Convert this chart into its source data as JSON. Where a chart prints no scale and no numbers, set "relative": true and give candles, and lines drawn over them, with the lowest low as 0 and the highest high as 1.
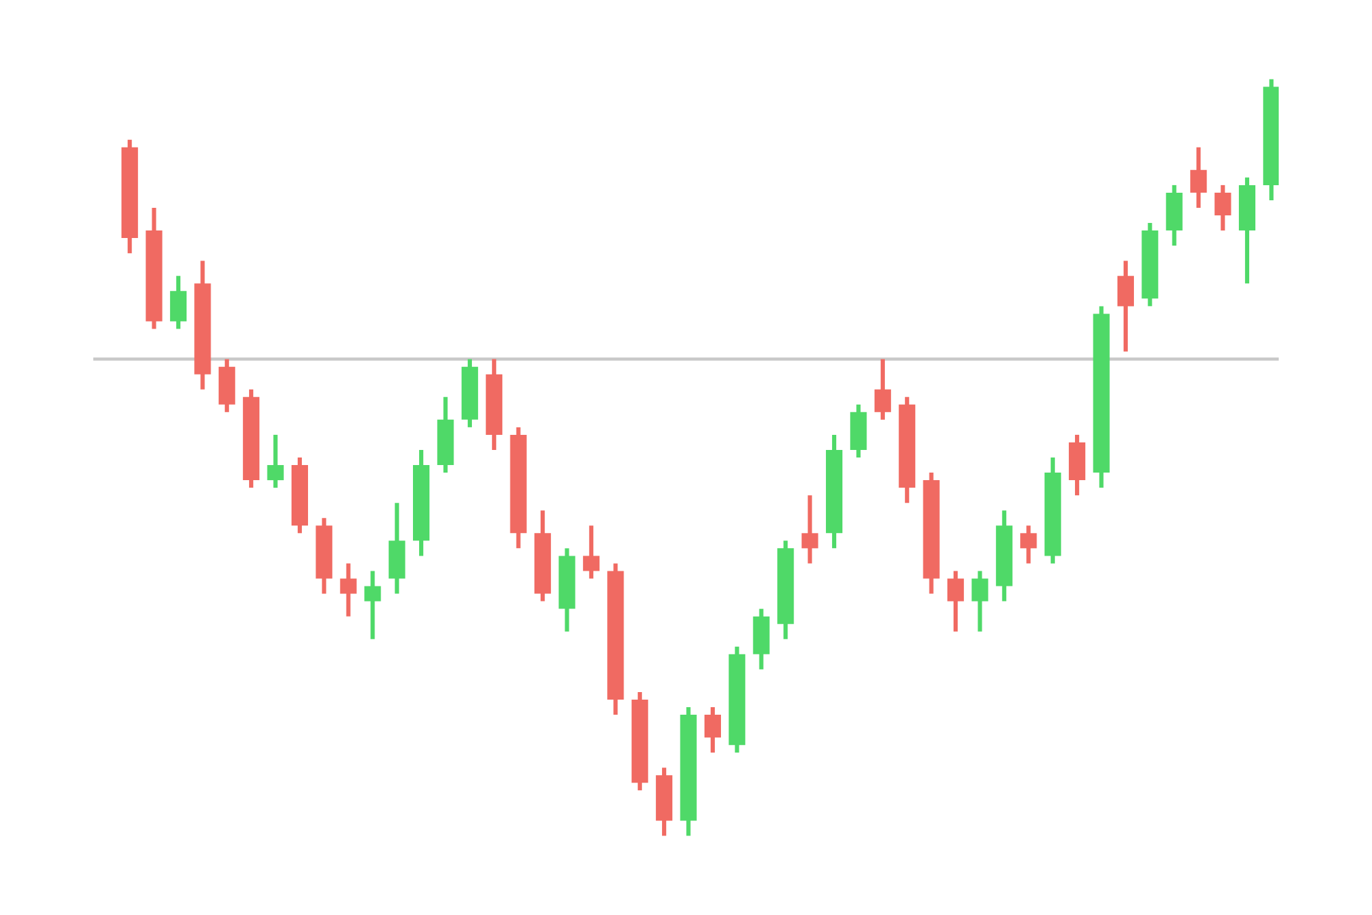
{
  "chart_data": {
    "type": "candlestick",
    "relative": true,
    "categories": [
      null,
      null,
      null,
      null,
      null,
      null,
      null,
      null,
      null,
      null,
      null,
      null,
      null,
      null,
      null,
      null,
      null,
      null,
      null,
      null,
      null,
      null,
      null,
      null,
      null,
      null,
      null,
      null,
      null,
      null,
      null,
      null,
      null,
      null,
      null,
      null,
      null,
      null,
      null,
      null,
      null,
      null,
      null,
      null,
      null,
      null,
      null,
      null
    ],
    "ohlc": [
      [
        0.91,
        0.92,
        0.77,
        0.79
      ],
      [
        0.8,
        0.83,
        0.67,
        0.68
      ],
      [
        0.68,
        0.74,
        0.67,
        0.72
      ],
      [
        0.73,
        0.76,
        0.59,
        0.61
      ],
      [
        0.62,
        0.63,
        0.56,
        0.57
      ],
      [
        0.58,
        0.59,
        0.46,
        0.47
      ],
      [
        0.47,
        0.53,
        0.46,
        0.49
      ],
      [
        0.49,
        0.5,
        0.4,
        0.41
      ],
      [
        0.41,
        0.42,
        0.32,
        0.34
      ],
      [
        0.34,
        0.36,
        0.29,
        0.32
      ],
      [
        0.31,
        0.35,
        0.26,
        0.33
      ],
      [
        0.34,
        0.44,
        0.32,
        0.39
      ],
      [
        0.39,
        0.51,
        0.37,
        0.49
      ],
      [
        0.49,
        0.58,
        0.48,
        0.55
      ],
      [
        0.55,
        0.63,
        0.54,
        0.62
      ],
      [
        0.61,
        0.63,
        0.51,
        0.53
      ],
      [
        0.53,
        0.54,
        0.38,
        0.4
      ],
      [
        0.4,
        0.43,
        0.31,
        0.32
      ],
      [
        0.3,
        0.38,
        0.27,
        0.37
      ],
      [
        0.37,
        0.41,
        0.34,
        0.35
      ],
      [
        0.35,
        0.36,
        0.16,
        0.18
      ],
      [
        0.18,
        0.19,
        0.06,
        0.07
      ],
      [
        0.08,
        0.09,
        0,
        0.02
      ],
      [
        0.02,
        0.17,
        0,
        0.16
      ],
      [
        0.16,
        0.17,
        0.11,
        0.13
      ],
      [
        0.12,
        0.25,
        0.11,
        0.24
      ],
      [
        0.24,
        0.3,
        0.22,
        0.29
      ],
      [
        0.28,
        0.39,
        0.26,
        0.38
      ],
      [
        0.4,
        0.45,
        0.36,
        0.38
      ],
      [
        0.4,
        0.53,
        0.38,
        0.51
      ],
      [
        0.51,
        0.57,
        0.5,
        0.56
      ],
      [
        0.59,
        0.63,
        0.55,
        0.56
      ],
      [
        0.57,
        0.58,
        0.44,
        0.46
      ],
      [
        0.47,
        0.48,
        0.32,
        0.34
      ],
      [
        0.34,
        0.35,
        0.27,
        0.31
      ],
      [
        0.31,
        0.35,
        0.27,
        0.34
      ],
      [
        0.33,
        0.43,
        0.31,
        0.41
      ],
      [
        0.4,
        0.41,
        0.36,
        0.38
      ],
      [
        0.37,
        0.5,
        0.36,
        0.48
      ],
      [
        0.52,
        0.53,
        0.45,
        0.47
      ],
      [
        0.48,
        0.7,
        0.46,
        0.69
      ],
      [
        0.74,
        0.76,
        0.64,
        0.7
      ],
      [
        0.71,
        0.81,
        0.7,
        0.8
      ],
      [
        0.8,
        0.86,
        0.78,
        0.85
      ],
      [
        0.88,
        0.91,
        0.83,
        0.85
      ],
      [
        0.85,
        0.86,
        0.8,
        0.82
      ],
      [
        0.8,
        0.87,
        0.73,
        0.86
      ],
      [
        0.86,
        1,
        0.84,
        0.99
      ]
    ],
    "colors": [
      "#f06a62",
      "#f06a62",
      "#4fd968",
      "#f06a62",
      "#f06a62",
      "#f06a62",
      "#4fd968",
      "#f06a62",
      "#f06a62",
      "#f06a62",
      "#4fd968",
      "#4fd968",
      "#4fd968",
      "#4fd968",
      "#4fd968",
      "#f06a62",
      "#f06a62",
      "#f06a62",
      "#4fd968",
      "#f06a62",
      "#f06a62",
      "#f06a62",
      "#f06a62",
      "#4fd968",
      "#f06a62",
      "#4fd968",
      "#4fd968",
      "#4fd968",
      "#f06a62",
      "#4fd968",
      "#4fd968",
      "#f06a62",
      "#f06a62",
      "#f06a62",
      "#f06a62",
      "#4fd968",
      "#4fd968",
      "#f06a62",
      "#4fd968",
      "#f06a62",
      "#4fd968",
      "#f06a62",
      "#4fd968",
      "#4fd968",
      "#f06a62",
      "#f06a62",
      "#4fd968",
      "#4fd968"
    ],
    "ref_lines": [
      {
        "axis": "y",
        "value": 0.63,
        "color": "#c8c8c8"
      }
    ]
  }
}
